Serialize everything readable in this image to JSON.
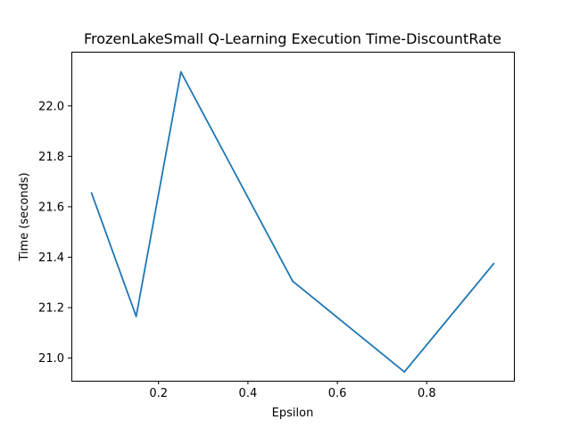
{
  "chart_data": {
    "type": "line",
    "title": "FrozenLakeSmall Q-Learning Execution Time-DiscountRate",
    "xlabel": "Epsilon",
    "ylabel": "Time (seconds)",
    "xlim": [
      0.005,
      0.995
    ],
    "ylim": [
      20.91,
      22.215
    ],
    "xticks": [
      0.2,
      0.4,
      0.6,
      0.8
    ],
    "xtick_labels": [
      "0.2",
      "0.4",
      "0.6",
      "0.8"
    ],
    "yticks": [
      21.0,
      21.2,
      21.4,
      21.6,
      21.8,
      22.0
    ],
    "ytick_labels": [
      "21.0",
      "21.2",
      "21.4",
      "21.6",
      "21.8",
      "22.0"
    ],
    "grid": false,
    "series": [
      {
        "color": "#1f77b4",
        "x": [
          0.05,
          0.15,
          0.25,
          0.5,
          0.75,
          0.95
        ],
        "y": [
          21.655,
          21.165,
          22.135,
          21.305,
          20.945,
          21.375
        ]
      }
    ]
  }
}
